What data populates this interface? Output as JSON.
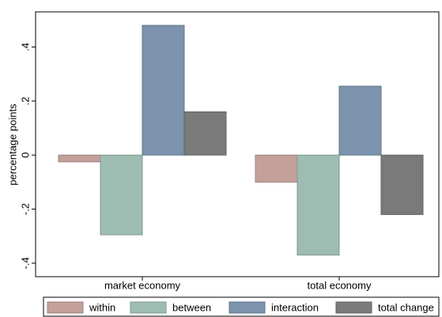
{
  "chart_data": {
    "type": "bar",
    "y_label": "percentage points",
    "categories": [
      "market economy",
      "total economy"
    ],
    "series": [
      {
        "name": "within",
        "color": "#c4a09a",
        "values": [
          -0.025,
          -0.1
        ]
      },
      {
        "name": "between",
        "color": "#9dbdb3",
        "values": [
          -0.295,
          -0.37
        ]
      },
      {
        "name": "interaction",
        "color": "#7b93ad",
        "values": [
          0.48,
          0.255
        ]
      },
      {
        "name": "total change",
        "color": "#7a7a7a",
        "values": [
          0.16,
          -0.22
        ]
      }
    ],
    "ylim": [
      -0.45,
      0.53
    ],
    "yticks": [
      {
        "value": -0.4,
        "label": "-.4"
      },
      {
        "value": -0.2,
        "label": "-.2"
      },
      0,
      {
        "value": 0.2,
        "label": ".2"
      },
      {
        "value": 0.4,
        "label": ".4"
      }
    ],
    "legend": "bottom"
  }
}
